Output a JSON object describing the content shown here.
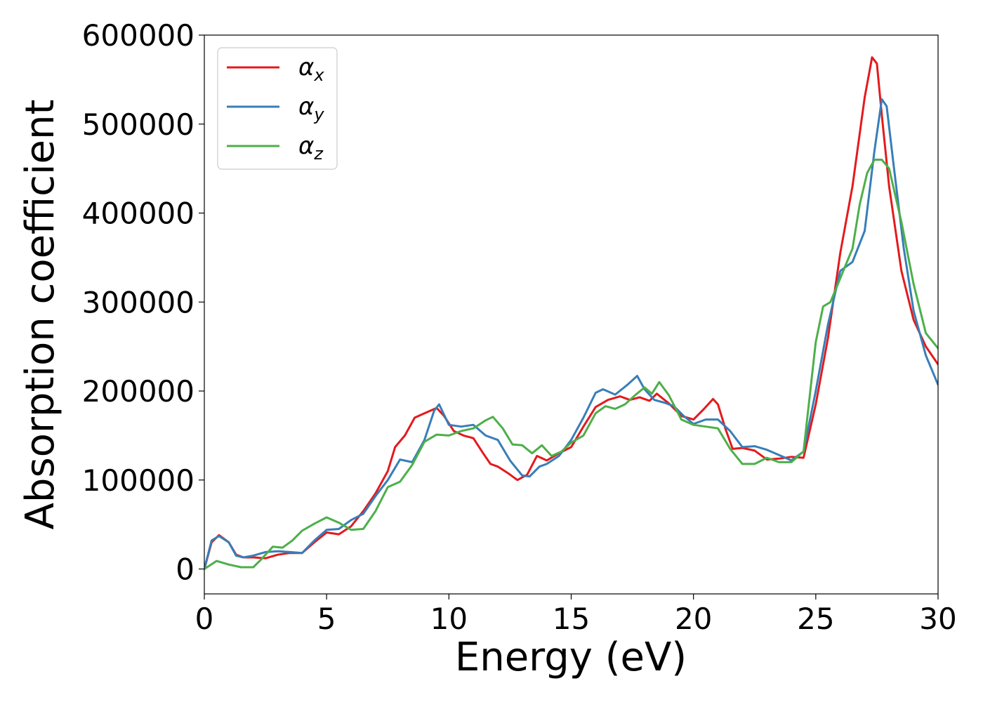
{
  "chart_data": {
    "type": "line",
    "xlabel": "Energy (eV)",
    "ylabel": "Absorption coefficient",
    "xlim": [
      0,
      30
    ],
    "ylim": [
      -28000,
      600000
    ],
    "x_ticks": [
      0,
      5,
      10,
      15,
      20,
      25,
      30
    ],
    "x_tick_labels": [
      "0",
      "5",
      "10",
      "15",
      "20",
      "25",
      "30"
    ],
    "y_ticks": [
      0,
      100000,
      200000,
      300000,
      400000,
      500000,
      600000
    ],
    "y_tick_labels": [
      "0",
      "100000",
      "200000",
      "300000",
      "400000",
      "500000",
      "600000"
    ],
    "grid": false,
    "legend_position": "top-left",
    "series": [
      {
        "name": "α",
        "subscript": "x",
        "color": "#e41a1c",
        "x": [
          0,
          0.3,
          0.6,
          1.0,
          1.3,
          1.6,
          2.0,
          2.5,
          3.0,
          3.5,
          4.0,
          4.5,
          5.0,
          5.5,
          6.0,
          6.5,
          7.0,
          7.5,
          7.8,
          8.2,
          8.6,
          9.0,
          9.5,
          9.8,
          10.2,
          10.6,
          11.0,
          11.4,
          11.7,
          12.0,
          12.4,
          12.8,
          13.2,
          13.6,
          14.0,
          14.5,
          15.0,
          15.5,
          16.0,
          16.5,
          17.0,
          17.4,
          17.8,
          18.2,
          18.5,
          19.0,
          19.5,
          20.0,
          20.4,
          20.8,
          21.0,
          21.3,
          21.6,
          22.0,
          22.5,
          23.0,
          23.5,
          24.0,
          24.5,
          25.0,
          25.5,
          26.0,
          26.5,
          27.0,
          27.3,
          27.5,
          27.7,
          28.0,
          28.5,
          29.0,
          29.5,
          30.0
        ],
        "y": [
          0,
          30000,
          38000,
          30000,
          16000,
          13000,
          13000,
          12000,
          16000,
          18000,
          18000,
          30000,
          41000,
          39000,
          48000,
          65000,
          85000,
          110000,
          137000,
          150000,
          170000,
          175000,
          181000,
          172000,
          155000,
          150000,
          147000,
          130000,
          118000,
          115000,
          108000,
          100000,
          106000,
          127000,
          122000,
          130000,
          137000,
          160000,
          182000,
          190000,
          194000,
          190000,
          193000,
          189000,
          197000,
          186000,
          172000,
          168000,
          179000,
          191000,
          185000,
          158000,
          135000,
          136000,
          133000,
          123000,
          124000,
          126000,
          125000,
          185000,
          260000,
          355000,
          430000,
          530000,
          575000,
          568000,
          510000,
          430000,
          335000,
          280000,
          250000,
          230000
        ]
      },
      {
        "name": "α",
        "subscript": "y",
        "color": "#377eb8",
        "x": [
          0,
          0.3,
          0.6,
          1.0,
          1.3,
          1.6,
          2.0,
          2.5,
          3.0,
          3.5,
          4.0,
          4.5,
          5.0,
          5.5,
          6.0,
          6.5,
          7.0,
          7.5,
          8.0,
          8.5,
          9.0,
          9.4,
          9.6,
          10.0,
          10.5,
          11.0,
          11.5,
          12.0,
          12.5,
          13.0,
          13.3,
          13.7,
          14.0,
          14.5,
          15.0,
          15.5,
          16.0,
          16.3,
          16.8,
          17.3,
          17.7,
          18.0,
          18.4,
          18.8,
          19.2,
          19.6,
          20.0,
          20.5,
          21.0,
          21.5,
          22.0,
          22.5,
          23.0,
          23.5,
          24.0,
          24.5,
          25.0,
          25.5,
          26.0,
          26.5,
          27.0,
          27.4,
          27.7,
          27.9,
          28.2,
          28.6,
          29.0,
          29.5,
          30.0
        ],
        "y": [
          0,
          32000,
          37000,
          30000,
          15000,
          13000,
          15000,
          19000,
          20000,
          19000,
          18000,
          32000,
          44000,
          45000,
          55000,
          62000,
          82000,
          100000,
          123000,
          120000,
          145000,
          178000,
          185000,
          162000,
          160000,
          162000,
          150000,
          145000,
          122000,
          105000,
          104000,
          115000,
          118000,
          127000,
          145000,
          170000,
          198000,
          202000,
          196000,
          207000,
          217000,
          202000,
          190000,
          187000,
          183000,
          172000,
          163000,
          168000,
          168000,
          155000,
          137000,
          138000,
          134000,
          128000,
          122000,
          132000,
          200000,
          275000,
          335000,
          345000,
          380000,
          470000,
          528000,
          520000,
          450000,
          360000,
          290000,
          240000,
          207000
        ]
      },
      {
        "name": "α",
        "subscript": "z",
        "color": "#4daf4a",
        "x": [
          0,
          0.5,
          1.0,
          1.5,
          2.0,
          2.3,
          2.8,
          3.2,
          3.6,
          4.0,
          4.5,
          5.0,
          5.5,
          6.0,
          6.5,
          7.0,
          7.5,
          8.0,
          8.5,
          9.0,
          9.5,
          10.0,
          10.5,
          11.0,
          11.5,
          11.8,
          12.2,
          12.6,
          13.0,
          13.4,
          13.8,
          14.2,
          14.6,
          15.0,
          15.5,
          16.0,
          16.4,
          16.8,
          17.2,
          17.6,
          18.0,
          18.3,
          18.6,
          19.0,
          19.5,
          20.0,
          20.5,
          21.0,
          21.5,
          22.0,
          22.5,
          23.0,
          23.5,
          24.0,
          24.5,
          25.0,
          25.3,
          25.6,
          25.9,
          26.2,
          26.5,
          26.8,
          27.1,
          27.4,
          27.7,
          28.0,
          28.5,
          29.0,
          29.5,
          30.0
        ],
        "y": [
          0,
          9000,
          5000,
          2000,
          2000,
          10000,
          25000,
          24000,
          32000,
          43000,
          51000,
          58000,
          52000,
          44000,
          45000,
          65000,
          92000,
          98000,
          117000,
          143000,
          151000,
          150000,
          155000,
          158000,
          167000,
          171000,
          158000,
          140000,
          139000,
          130000,
          139000,
          127000,
          132000,
          142000,
          150000,
          175000,
          183000,
          180000,
          185000,
          195000,
          204000,
          197000,
          210000,
          195000,
          168000,
          162000,
          160000,
          158000,
          135000,
          118000,
          118000,
          125000,
          120000,
          120000,
          132000,
          255000,
          295000,
          300000,
          320000,
          340000,
          360000,
          410000,
          445000,
          460000,
          460000,
          450000,
          390000,
          320000,
          265000,
          248000
        ]
      }
    ]
  }
}
